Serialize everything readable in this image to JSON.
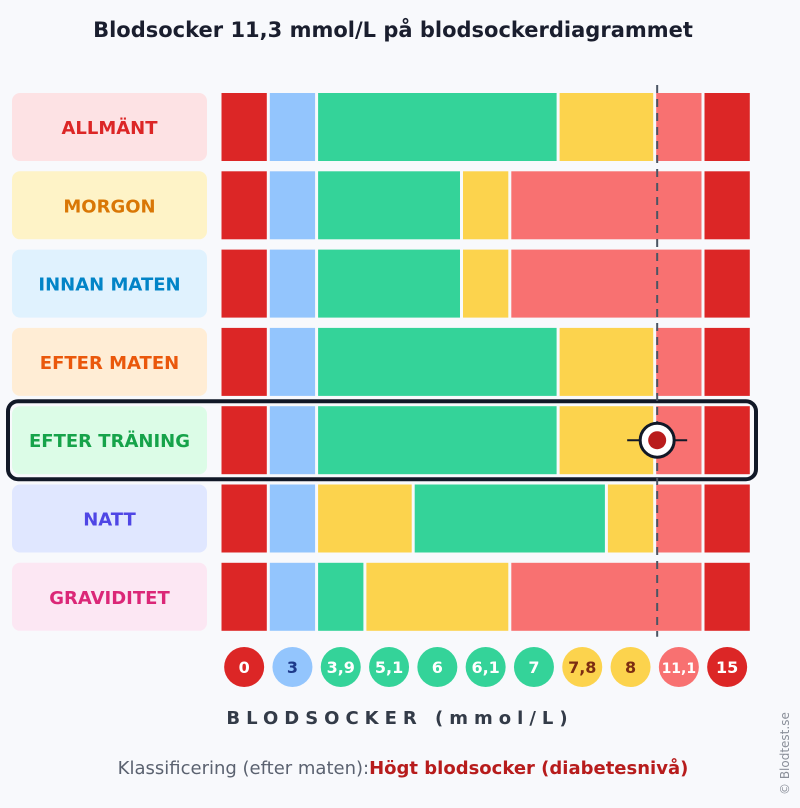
{
  "title": "Blodsocker 11,3 mmol/L på blodsockerdiagrammet",
  "axis_label": "BLODSOCKER (mmol/L)",
  "classification": {
    "label": "Klassificering (efter maten):",
    "value": "Högt blodsocker (diabetesnivå)"
  },
  "watermark": "© Blodtest.se",
  "colors": {
    "dark_red": "#dc2626",
    "blue": "#93c5fd",
    "green": "#34d399",
    "yellow": "#fcd34d",
    "salmon": "#f87171",
    "marker": "#b91c1c"
  },
  "chart_data": {
    "type": "heatmap",
    "measured_value": 11.3,
    "highlighted_row": "EFTER TRÄNING",
    "scale_ticks": [
      "0",
      "3",
      "3,9",
      "5,1",
      "6",
      "6,1",
      "7",
      "7,8",
      "8",
      "11,1",
      "15"
    ],
    "tick_colors": [
      "dark_red",
      "blue",
      "green",
      "green",
      "green",
      "green",
      "green",
      "yellow",
      "yellow",
      "salmon",
      "dark_red"
    ],
    "rows": [
      {
        "label": "ALLMÄNT",
        "label_color": "#dc2626",
        "bg": "#fde2e4",
        "bands": [
          [
            "dark_red",
            1
          ],
          [
            "blue",
            1
          ],
          [
            "green",
            5
          ],
          [
            "yellow",
            2
          ],
          [
            "salmon",
            1
          ],
          [
            "dark_red",
            1
          ]
        ]
      },
      {
        "label": "MORGON",
        "label_color": "#d97706",
        "bg": "#fef3c7",
        "bands": [
          [
            "dark_red",
            1
          ],
          [
            "blue",
            1
          ],
          [
            "green",
            3
          ],
          [
            "yellow",
            1
          ],
          [
            "salmon",
            4
          ],
          [
            "dark_red",
            1
          ]
        ]
      },
      {
        "label": "INNAN MATEN",
        "label_color": "#0284c7",
        "bg": "#e0f2fe",
        "bands": [
          [
            "dark_red",
            1
          ],
          [
            "blue",
            1
          ],
          [
            "green",
            3
          ],
          [
            "yellow",
            1
          ],
          [
            "salmon",
            4
          ],
          [
            "dark_red",
            1
          ]
        ]
      },
      {
        "label": "EFTER MATEN",
        "label_color": "#ea580c",
        "bg": "#ffedd5",
        "bands": [
          [
            "dark_red",
            1
          ],
          [
            "blue",
            1
          ],
          [
            "green",
            5
          ],
          [
            "yellow",
            2
          ],
          [
            "salmon",
            1
          ],
          [
            "dark_red",
            1
          ]
        ]
      },
      {
        "label": "EFTER TRÄNING",
        "label_color": "#16a34a",
        "bg": "#dcfce7",
        "bands": [
          [
            "dark_red",
            1
          ],
          [
            "blue",
            1
          ],
          [
            "green",
            5
          ],
          [
            "yellow",
            2
          ],
          [
            "salmon",
            1
          ],
          [
            "dark_red",
            1
          ]
        ]
      },
      {
        "label": "NATT",
        "label_color": "#4f46e5",
        "bg": "#e0e7ff",
        "bands": [
          [
            "dark_red",
            1
          ],
          [
            "blue",
            1
          ],
          [
            "yellow",
            2
          ],
          [
            "green",
            4
          ],
          [
            "yellow",
            1
          ],
          [
            "salmon",
            1
          ],
          [
            "dark_red",
            1
          ]
        ]
      },
      {
        "label": "GRAVIDITET",
        "label_color": "#db2777",
        "bg": "#fce7f3",
        "bands": [
          [
            "dark_red",
            1
          ],
          [
            "blue",
            1
          ],
          [
            "green",
            1
          ],
          [
            "yellow",
            3
          ],
          [
            "salmon",
            4
          ],
          [
            "dark_red",
            1
          ]
        ]
      }
    ]
  }
}
